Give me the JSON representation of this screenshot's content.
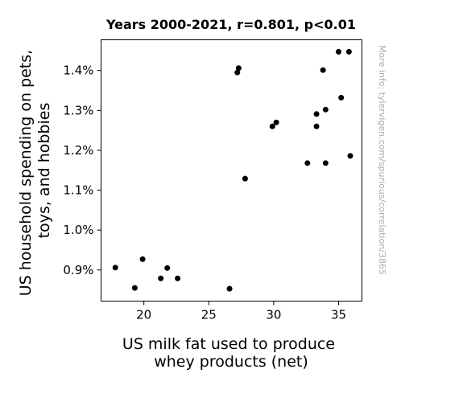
{
  "chart_data": {
    "type": "scatter",
    "title": "Years 2000-2021, r=0.801, p<0.01",
    "xlabel": [
      "US milk fat used to produce",
      "whey products (net)"
    ],
    "ylabel": [
      "US household spending on pets,",
      "toys, and hobbies"
    ],
    "side_note": "More info: tylervigen.com/spurious/correlation/3865",
    "xlim": [
      16.7,
      36.8
    ],
    "ylim": [
      0.822,
      1.477
    ],
    "xticks": [
      {
        "value": 20,
        "label": "20"
      },
      {
        "value": 25,
        "label": "25"
      },
      {
        "value": 30,
        "label": "30"
      },
      {
        "value": 35,
        "label": "35"
      }
    ],
    "yticks": [
      {
        "value": 0.9,
        "label": "0.9%"
      },
      {
        "value": 1.0,
        "label": "1.0%"
      },
      {
        "value": 1.1,
        "label": "1.1%"
      },
      {
        "value": 1.2,
        "label": "1.2%"
      },
      {
        "value": 1.3,
        "label": "1.3%"
      },
      {
        "value": 1.4,
        "label": "1.4%"
      }
    ],
    "grid": false,
    "marker_color": "#000000",
    "points": [
      {
        "x": 17.8,
        "y": 0.906
      },
      {
        "x": 19.3,
        "y": 0.855
      },
      {
        "x": 19.9,
        "y": 0.927
      },
      {
        "x": 21.3,
        "y": 0.879
      },
      {
        "x": 21.8,
        "y": 0.905
      },
      {
        "x": 22.6,
        "y": 0.879
      },
      {
        "x": 26.6,
        "y": 0.853
      },
      {
        "x": 27.2,
        "y": 1.395
      },
      {
        "x": 27.3,
        "y": 1.406
      },
      {
        "x": 27.8,
        "y": 1.129
      },
      {
        "x": 29.9,
        "y": 1.26
      },
      {
        "x": 30.2,
        "y": 1.27
      },
      {
        "x": 32.6,
        "y": 1.168
      },
      {
        "x": 33.3,
        "y": 1.291
      },
      {
        "x": 33.3,
        "y": 1.26
      },
      {
        "x": 33.8,
        "y": 1.401
      },
      {
        "x": 34.0,
        "y": 1.302
      },
      {
        "x": 34.0,
        "y": 1.168
      },
      {
        "x": 35.0,
        "y": 1.447
      },
      {
        "x": 35.2,
        "y": 1.332
      },
      {
        "x": 35.8,
        "y": 1.447
      },
      {
        "x": 35.9,
        "y": 1.186
      }
    ]
  }
}
